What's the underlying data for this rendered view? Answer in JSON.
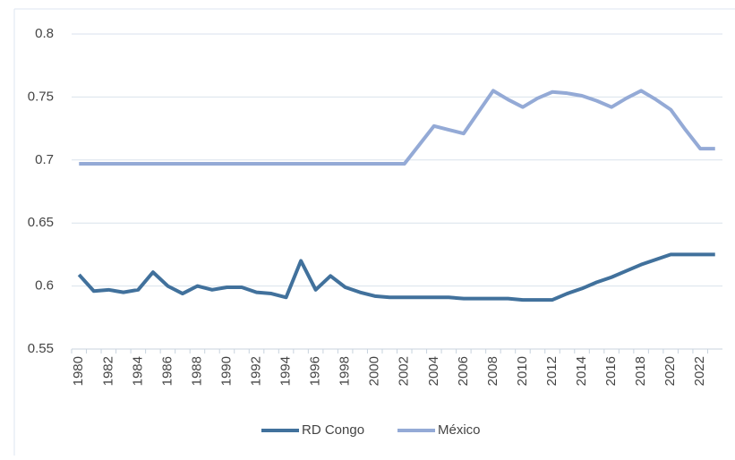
{
  "chart_data": {
    "type": "line",
    "categories": [
      "1980",
      null,
      "1982",
      null,
      "1984",
      null,
      "1986",
      null,
      "1988",
      null,
      "1990",
      null,
      "1992",
      null,
      "1994",
      null,
      "1996",
      null,
      "1998",
      null,
      "2000",
      null,
      "2002",
      null,
      "2004",
      null,
      "2006",
      null,
      "2008",
      null,
      "2010",
      null,
      "2012",
      null,
      "2014",
      null,
      "2016",
      null,
      "2018",
      null,
      "2020",
      null,
      "2022",
      null
    ],
    "series": [
      {
        "name": "RD Congo",
        "color": "#41719c",
        "values": [
          0.609,
          0.596,
          0.597,
          0.595,
          0.597,
          0.611,
          0.6,
          0.594,
          0.6,
          0.597,
          0.599,
          0.599,
          0.595,
          0.594,
          0.591,
          0.62,
          0.597,
          0.608,
          0.599,
          0.595,
          0.592,
          0.591,
          0.591,
          0.591,
          0.591,
          0.591,
          0.59,
          0.59,
          0.59,
          0.59,
          0.589,
          0.589,
          0.589,
          0.594,
          0.598,
          0.603,
          0.607,
          0.612,
          0.617,
          0.621,
          0.625,
          0.625,
          0.625,
          0.625
        ]
      },
      {
        "name": "México",
        "color": "#94aad6",
        "values": [
          0.697,
          0.697,
          0.697,
          0.697,
          0.697,
          0.697,
          0.697,
          0.697,
          0.697,
          0.697,
          0.697,
          0.697,
          0.697,
          0.697,
          0.697,
          0.697,
          0.697,
          0.697,
          0.697,
          0.697,
          0.697,
          0.697,
          0.697,
          0.712,
          0.727,
          0.724,
          0.721,
          0.738,
          0.755,
          0.748,
          0.742,
          0.749,
          0.754,
          0.753,
          0.751,
          0.747,
          0.742,
          0.749,
          0.755,
          0.748,
          0.74,
          0.724,
          0.709,
          0.709
        ]
      }
    ],
    "ylim": [
      0.55,
      0.8
    ],
    "yticks": [
      0.55,
      0.6,
      0.65,
      0.7,
      0.75,
      0.8
    ],
    "grid": true,
    "legend": "bottom"
  }
}
